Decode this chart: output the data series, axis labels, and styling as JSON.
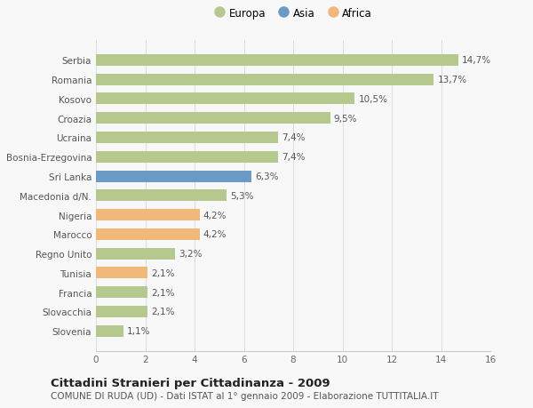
{
  "categories": [
    "Slovenia",
    "Slovacchia",
    "Francia",
    "Tunisia",
    "Regno Unito",
    "Marocco",
    "Nigeria",
    "Macedonia d/N.",
    "Sri Lanka",
    "Bosnia-Erzegovina",
    "Ucraina",
    "Croazia",
    "Kosovo",
    "Romania",
    "Serbia"
  ],
  "values": [
    1.1,
    2.1,
    2.1,
    2.1,
    3.2,
    4.2,
    4.2,
    5.3,
    6.3,
    7.4,
    7.4,
    9.5,
    10.5,
    13.7,
    14.7
  ],
  "labels": [
    "1,1%",
    "2,1%",
    "2,1%",
    "2,1%",
    "3,2%",
    "4,2%",
    "4,2%",
    "5,3%",
    "6,3%",
    "7,4%",
    "7,4%",
    "9,5%",
    "10,5%",
    "13,7%",
    "14,7%"
  ],
  "continents": [
    "Europa",
    "Europa",
    "Europa",
    "Africa",
    "Europa",
    "Africa",
    "Africa",
    "Europa",
    "Asia",
    "Europa",
    "Europa",
    "Europa",
    "Europa",
    "Europa",
    "Europa"
  ],
  "colors": {
    "Europa": "#b5c98e",
    "Asia": "#6b9ac4",
    "Africa": "#f0b87a"
  },
  "legend": [
    {
      "label": "Europa",
      "color": "#b5c98e"
    },
    {
      "label": "Asia",
      "color": "#6b9ac4"
    },
    {
      "label": "Africa",
      "color": "#f0b87a"
    }
  ],
  "xlim": [
    0,
    16
  ],
  "xticks": [
    0,
    2,
    4,
    6,
    8,
    10,
    12,
    14,
    16
  ],
  "title": "Cittadini Stranieri per Cittadinanza - 2009",
  "subtitle": "COMUNE DI RUDA (UD) - Dati ISTAT al 1° gennaio 2009 - Elaborazione TUTTITALIA.IT",
  "bg_color": "#f8f8f8",
  "bar_height": 0.6,
  "label_fontsize": 7.5,
  "tick_fontsize": 7.5,
  "ytick_fontsize": 7.5,
  "title_fontsize": 9.5,
  "subtitle_fontsize": 7.5,
  "legend_fontsize": 8.5
}
